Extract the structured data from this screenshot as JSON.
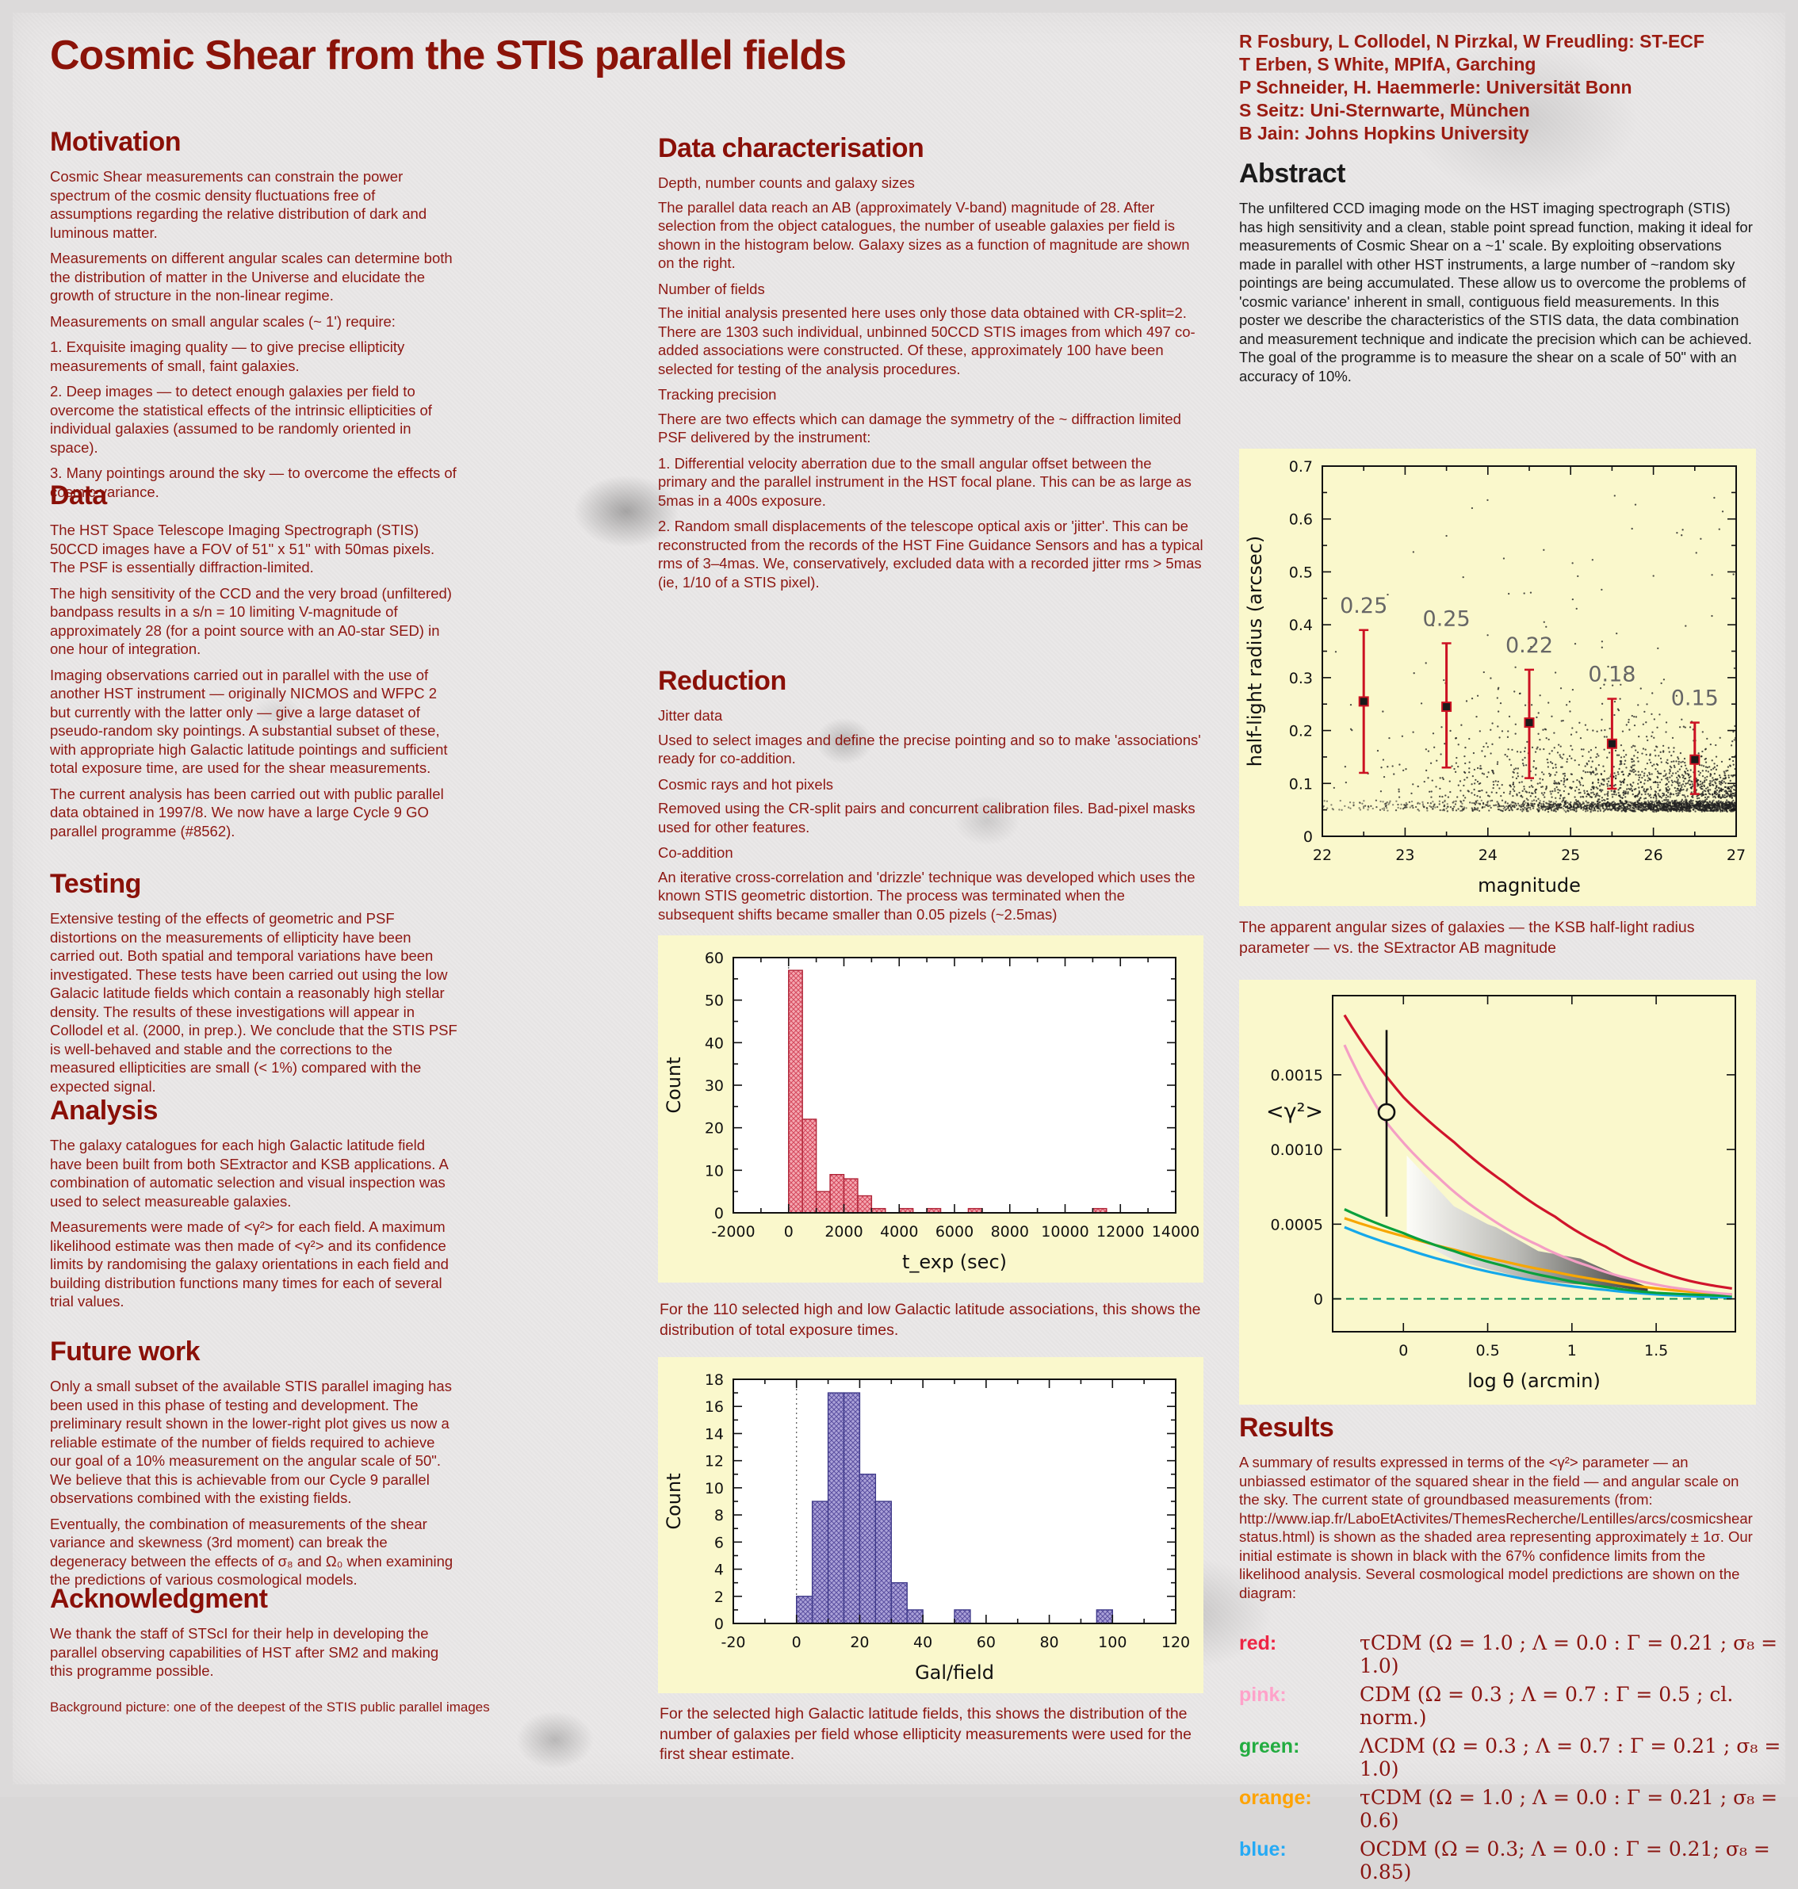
{
  "poster": {
    "title": "Cosmic Shear from the STIS parallel fields",
    "authors": [
      "R Fosbury, L Collodel, N Pirzkal, W Freudling: ST-ECF",
      "T Erben,  S White, MPIfA, Garching",
      "P Schneider, H. Haemmerle: Universität Bonn",
      "S Seitz: Uni-Sternwarte, München",
      "B Jain: Johns Hopkins University"
    ]
  },
  "left": {
    "motivation": {
      "heading": "Motivation",
      "p1": "Cosmic Shear measurements can constrain the power spectrum of the cosmic density fluctuations free of assumptions regarding the relative distribution of dark and luminous matter.",
      "p2": "Measurements on different angular scales can determine both the distribution of matter in the Universe and elucidate the growth of structure in the non-linear regime.",
      "p3": "Measurements on small angular scales (~ 1') require:",
      "p4": "1. Exquisite imaging quality — to give precise ellipticity measurements of small, faint galaxies.",
      "p5": "2. Deep images — to detect enough galaxies per field to overcome the statistical effects of the intrinsic ellipticities of individual galaxies (assumed to be randomly oriented in space).",
      "p6": "3. Many pointings around the sky — to overcome the effects of cosmic variance."
    },
    "data": {
      "heading": "Data",
      "p1": "The HST Space Telescope Imaging Spectrograph (STIS) 50CCD images have a FOV of 51\" x 51\" with 50mas pixels. The PSF is essentially diffraction-limited.",
      "p2": "The high sensitivity of the CCD and the very broad (unfiltered) bandpass results in a s/n = 10 limiting V-magnitude of approximately 28 (for a point source with an A0-star SED) in one hour of integration.",
      "p3": "Imaging observations carried out in parallel with the use of another HST instrument — originally NICMOS and WFPC 2 but currently with the latter only — give a large dataset of pseudo-random sky pointings. A substantial subset of these, with appropriate high Galactic latitude pointings and sufficient total exposure time, are used for the shear measurements.",
      "p4": "The current analysis has been carried out with public parallel data obtained in 1997/8. We now have a large Cycle 9 GO parallel programme (#8562)."
    },
    "testing": {
      "heading": "Testing",
      "p1": "Extensive testing of the effects of geometric and PSF distortions on the measurements of ellipticity have been carried out. Both spatial and temporal variations have been investigated. These tests have been carried out using the low Galacic latitude fields which contain a reasonably high stellar density. The results of these investigations will appear in Collodel et al. (2000, in prep.). We conclude that the STIS PSF is well-behaved and stable and the corrections to the measured ellipticities are small (< 1%) compared with the expected signal."
    },
    "analysis": {
      "heading": "Analysis",
      "p1": "The galaxy catalogues for each high Galactic latitude field have been built from both SExtractor and KSB applications. A combination of automatic selection and visual inspection was used to select measureable galaxies.",
      "p2": "Measurements were made of <γ²> for each field. A maximum likelihood estimate was then made of <γ²> and its confidence limits by randomising the galaxy orientations in each field and building distribution functions many times for each of several trial values."
    },
    "future_work": {
      "heading": "Future work",
      "p1": "Only a small subset of the available STIS parallel imaging has been used in this phase of testing and development. The preliminary result shown in the lower-right plot gives us now a reliable estimate of the number of fields required to achieve our goal of a 10% measurement on the angular scale of 50\". We believe that this is achievable from our Cycle 9 parallel observations combined with the existing fields.",
      "p2": "Eventually, the combination of measurements of the shear variance and skewness (3rd moment) can break the degeneracy between the effects of σ₈ and Ω₀ when examining the predictions of various cosmological models."
    },
    "acknowledgment": {
      "heading": "Acknowledgment",
      "p1": "We thank the staff of STScI for their help in developing the parallel observing capabilities of HST after SM2 and making this programme possible."
    },
    "background_note": "Background picture:  one of the deepest of the STIS public parallel images"
  },
  "middle": {
    "data_characterisation": {
      "heading": "Data characterisation",
      "sub1": "Depth, number counts and galaxy sizes",
      "p1": "The parallel data reach an AB (approximately V-band) magnitude of 28. After selection from the object catalogues, the number of useable galaxies per field is shown in the histogram below. Galaxy sizes as a function of magnitude are shown on the right.",
      "sub2": "Number of fields",
      "p2": "The initial analysis presented here uses only those data obtained with CR-split=2. There are 1303 such individual, unbinned 50CCD STIS images from which 497 co-added associations were constructed. Of these, approximately 100 have been selected for testing of the analysis procedures.",
      "sub3": "Tracking precision",
      "p3": "There are two effects which can damage the symmetry of the ~ diffraction limited PSF delivered by the instrument:",
      "p4": "1. Differential velocity aberration due to the small angular offset between the primary and the parallel instrument in the HST focal plane. This can be as large as 5mas in a 400s exposure.",
      "p5": "2. Random small displacements of the telescope optical axis or 'jitter'. This can be reconstructed from the records of the HST Fine Guidance Sensors and has a typical rms of 3–4mas. We, conservatively, excluded data with a recorded jitter rms > 5mas (ie, 1/10 of a STIS pixel)."
    },
    "reduction": {
      "heading": "Reduction",
      "sub1": "Jitter data",
      "p1": "Used to select images and define the precise pointing and so to make 'associations' ready for co-addition.",
      "sub2": "Cosmic rays and hot pixels",
      "p2": "Removed using the CR-split pairs and concurrent calibration files. Bad-pixel masks used for other features.",
      "sub3": "Co-addition",
      "p3": "An iterative cross-correlation and 'drizzle' technique was developed which uses the known STIS geometric distortion. The process was terminated when the subsequent shifts became smaller than 0.05 pizels (~2.5mas)"
    },
    "caption_texp": "For the 110 selected high and low Galactic latitude associations, this shows the distribution of total exposure times.",
    "caption_galfield": "For the selected high Galactic latitude fields, this shows the distribution of the number of galaxies per field whose ellipticity measurements were used for the first shear estimate."
  },
  "right": {
    "abstract": {
      "heading": "Abstract",
      "text": "The unfiltered CCD imaging mode on the HST imaging spectrograph (STIS) has high sensitivity and a clean, stable point spread function, making it ideal for measurements of Cosmic Shear on a ~1' scale. By exploiting observations made in parallel with other HST instruments, a large number of ~random sky pointings are being accumulated. These allow us to overcome the problems of 'cosmic variance' inherent in small, contiguous field measurements. In this poster we describe the characteristics of the STIS data, the data combination and measurement technique and indicate the precision which can be achieved. The goal of the programme is to measure the shear on a scale of 50\" with an accuracy of 10%."
    },
    "scatter_caption": "The apparent angular sizes of galaxies — the KSB half-light radius parameter — vs. the SExtractor AB magnitude",
    "results": {
      "heading": "Results",
      "text": "A summary of results expressed in terms of the <γ²> parameter — an unbiassed estimator of the squared shear in the field — and angular scale on the sky. The current state of groundbased measurements (from: http://www.iap.fr/LaboEtActivites/ThemesRecherche/Lentilles/arcs/cosmicshearstatus.html) is shown as the shaded area representing approximately ± 1σ.  Our initial estimate is shown in black with the 67% confidence limits from the likelihood analysis. Several cosmological model predictions are shown on the diagram:"
    },
    "legend": [
      {
        "name": "red:",
        "color": "#ee2444",
        "text": "τCDM (Ω = 1.0 ; Λ = 0.0 : Γ = 0.21 ; σ₈ = 1.0)"
      },
      {
        "name": "pink:",
        "color": "#ffa2ca",
        "text": "CDM (Ω = 0.3 ; Λ = 0.7 : Γ = 0.5 ; cl. norm.)"
      },
      {
        "name": "green:",
        "color": "#22ac40",
        "text": "ΛCDM (Ω = 0.3 ; Λ = 0.7 : Γ = 0.21 ; σ₈ = 1.0)"
      },
      {
        "name": "orange:",
        "color": "#ffa300",
        "text": "τCDM (Ω = 1.0 ; Λ = 0.0 : Γ = 0.21 ; σ₈ = 0.6)"
      },
      {
        "name": "blue:",
        "color": "#25aaf5",
        "text": "OCDM (Ω =  0.3; Λ = 0.0 : Γ = 0.21; σ₈ = 0.85)"
      }
    ]
  },
  "chart_data": [
    {
      "id": "hist-texp",
      "type": "bar",
      "xlabel": "t_exp (sec)",
      "ylabel": "Count",
      "xlim": [
        -2000,
        14000
      ],
      "ylim": [
        0,
        60
      ],
      "xticks": [
        -2000,
        0,
        2000,
        4000,
        6000,
        8000,
        10000,
        12000,
        14000
      ],
      "yticks": [
        0,
        10,
        20,
        30,
        40,
        50,
        60
      ],
      "bin_width": 500,
      "bins": [
        [
          0,
          57
        ],
        [
          500,
          22
        ],
        [
          1000,
          5
        ],
        [
          1500,
          9
        ],
        [
          2000,
          8
        ],
        [
          2500,
          4
        ],
        [
          3000,
          1
        ],
        [
          4000,
          1
        ],
        [
          5000,
          1
        ],
        [
          6500,
          1
        ],
        [
          11000,
          1
        ]
      ],
      "bar_color": "#f4a8b1",
      "bar_hatch": "#d4475c",
      "bar_edge": "#b02437",
      "plot_bg": "#ffffff",
      "grid": false
    },
    {
      "id": "hist-galfield",
      "type": "bar",
      "xlabel": "Gal/field",
      "ylabel": "Count",
      "xlim": [
        -20,
        120
      ],
      "ylim": [
        0,
        18
      ],
      "xticks": [
        -20,
        0,
        20,
        40,
        60,
        80,
        100,
        120
      ],
      "yticks": [
        0,
        2,
        4,
        6,
        8,
        10,
        12,
        14,
        16,
        18
      ],
      "bin_width": 5,
      "bins": [
        [
          0,
          2
        ],
        [
          5,
          9
        ],
        [
          10,
          17
        ],
        [
          15,
          17
        ],
        [
          20,
          11
        ],
        [
          25,
          9
        ],
        [
          30,
          3
        ],
        [
          35,
          1
        ],
        [
          50,
          1
        ],
        [
          95,
          1
        ]
      ],
      "bar_color": "#aba2d8",
      "bar_hatch": "#5a4fa0",
      "bar_edge": "#3f3a8a",
      "plot_bg": "#ffffff",
      "grid": false
    },
    {
      "id": "scatter-sizes",
      "type": "scatter",
      "xlabel": "magnitude",
      "ylabel": "half-light radius (arcsec)",
      "xlim": [
        22,
        27
      ],
      "ylim": [
        0,
        0.7
      ],
      "xticks": [
        22,
        23,
        24,
        25,
        26,
        27
      ],
      "yticks": [
        0,
        0.1,
        0.2,
        0.3,
        0.4,
        0.5,
        0.6,
        0.7
      ],
      "means": [
        {
          "x": 22.5,
          "y": 0.255,
          "lo": 0.12,
          "hi": 0.39,
          "label": "0.25"
        },
        {
          "x": 23.5,
          "y": 0.245,
          "lo": 0.13,
          "hi": 0.365,
          "label": "0.25"
        },
        {
          "x": 24.5,
          "y": 0.215,
          "lo": 0.11,
          "hi": 0.315,
          "label": "0.22"
        },
        {
          "x": 25.5,
          "y": 0.175,
          "lo": 0.09,
          "hi": 0.26,
          "label": "0.18"
        },
        {
          "x": 26.5,
          "y": 0.145,
          "lo": 0.08,
          "hi": 0.215,
          "label": "0.15"
        }
      ],
      "point_color": "#1a1a1a",
      "errorbar_color": "#cc1122",
      "plot_bg": "#faf8cc",
      "grid": false
    },
    {
      "id": "gamma-plot",
      "type": "line",
      "xlabel": "log θ (arcmin)",
      "ylabel": "<γ²>",
      "xlim": [
        -0.42,
        1.97
      ],
      "ylim": [
        -0.00022,
        0.00203
      ],
      "xticks": [
        0,
        0.5,
        1,
        1.5
      ],
      "yticks": [
        0,
        0.0005,
        0.001,
        0.0015
      ],
      "ytick_labels": [
        "0",
        "0.0005",
        "0.0010",
        "0.0015"
      ],
      "series": [
        {
          "name": "blue: OCDM",
          "color": "#15a8ea",
          "points": [
            [
              -0.35,
              0.00048
            ],
            [
              0,
              0.00034
            ],
            [
              0.3,
              0.00024
            ],
            [
              0.6,
              0.00016
            ],
            [
              0.9,
              0.0001
            ],
            [
              1.2,
              6e-05
            ],
            [
              1.5,
              3e-05
            ],
            [
              1.95,
              1e-05
            ]
          ]
        },
        {
          "name": "orange: tCDM s8=0.6",
          "color": "#f7a600",
          "points": [
            [
              -0.35,
              0.00054
            ],
            [
              0,
              0.00042
            ],
            [
              0.3,
              0.00033
            ],
            [
              0.6,
              0.00025
            ],
            [
              0.9,
              0.00018
            ],
            [
              1.2,
              0.00012
            ],
            [
              1.5,
              7e-05
            ],
            [
              1.95,
              3e-05
            ]
          ]
        },
        {
          "name": "green: LCDM",
          "color": "#0aa03c",
          "points": [
            [
              -0.35,
              0.0006
            ],
            [
              0,
              0.00044
            ],
            [
              0.3,
              0.00032
            ],
            [
              0.6,
              0.00022
            ],
            [
              0.9,
              0.00014
            ],
            [
              1.2,
              8e-05
            ],
            [
              1.5,
              4e-05
            ],
            [
              1.95,
              2e-05
            ]
          ]
        },
        {
          "name": "pink: CDM cl. norm.",
          "color": "#f49ec4",
          "points": [
            [
              -0.35,
              0.0017
            ],
            [
              -0.1,
              0.00118
            ],
            [
              0.2,
              0.00082
            ],
            [
              0.5,
              0.00055
            ],
            [
              0.8,
              0.00036
            ],
            [
              1.1,
              0.00022
            ],
            [
              1.4,
              0.00012
            ],
            [
              1.7,
              6e-05
            ],
            [
              1.95,
              3e-05
            ]
          ]
        },
        {
          "name": "red: tCDM s8=1.0",
          "color": "#d0142c",
          "points": [
            [
              -0.35,
              0.0019
            ],
            [
              0,
              0.00135
            ],
            [
              0.3,
              0.00105
            ],
            [
              0.6,
              0.00078
            ],
            [
              0.9,
              0.00055
            ],
            [
              1.2,
              0.00035
            ],
            [
              1.5,
              0.00019
            ],
            [
              1.7,
              0.00012
            ],
            [
              1.95,
              7e-05
            ]
          ]
        }
      ],
      "data_point": {
        "x": -0.1,
        "y": 0.00125,
        "lo": 0.00055,
        "hi": 0.0018
      },
      "zero_line_color": "#0b8f4d",
      "shaded_band": {
        "upper": [
          [
            0.02,
            0.00096
          ],
          [
            0.3,
            0.00062
          ],
          [
            0.5,
            0.0005
          ],
          [
            0.55,
            0.00048
          ],
          [
            0.8,
            0.00032
          ],
          [
            1.05,
            0.00027
          ],
          [
            1.25,
            0.00017
          ],
          [
            1.45,
            8e-05
          ]
        ],
        "lower": [
          [
            0.02,
            0.00042
          ],
          [
            0.3,
            0.00026
          ],
          [
            0.5,
            0.0002
          ],
          [
            0.75,
            0.00013
          ],
          [
            1.0,
            0.0001
          ],
          [
            1.25,
            8e-05
          ],
          [
            1.45,
            5e-05
          ]
        ]
      },
      "plot_bg": "#faf8cc",
      "grid": false
    }
  ]
}
